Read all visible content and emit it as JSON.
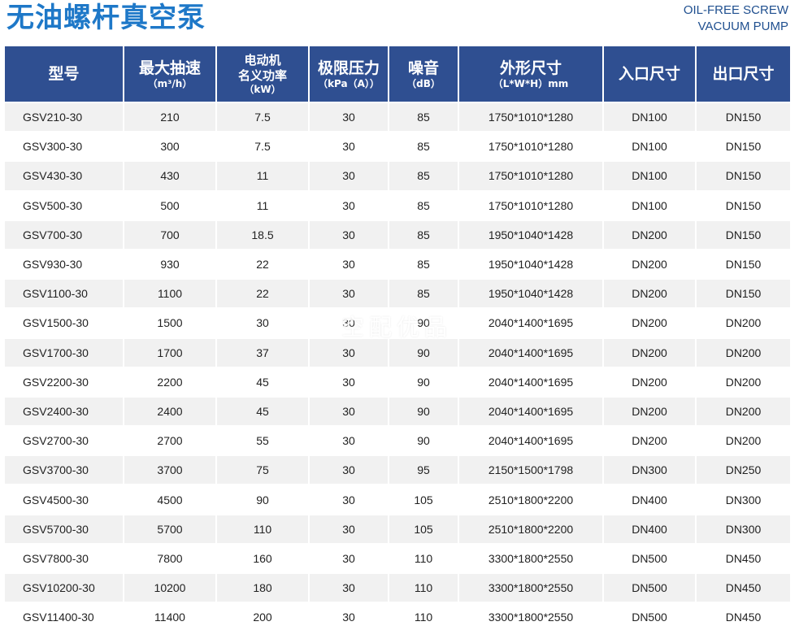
{
  "header": {
    "title": "无油螺杆真空泵",
    "subtitle_line1": "OIL-FREE SCREW",
    "subtitle_line2": "VACUUM PUMP"
  },
  "columns": [
    {
      "line1": "型号"
    },
    {
      "line1": "最大抽速",
      "unit": "（m³/h）"
    },
    {
      "line1": "电动机",
      "line2": "名义功率",
      "unit": "（kW）"
    },
    {
      "line1": "极限压力",
      "unit": "（kPa（A））"
    },
    {
      "line1": "噪音",
      "unit": "（dB）"
    },
    {
      "line1": "外形尺寸",
      "unit": "（L*W*H）mm"
    },
    {
      "line1": "入口尺寸"
    },
    {
      "line1": "出口尺寸"
    }
  ],
  "rows": [
    [
      "GSV210-30",
      "210",
      "7.5",
      "30",
      "85",
      "1750*1010*1280",
      "DN100",
      "DN150"
    ],
    [
      "GSV300-30",
      "300",
      "7.5",
      "30",
      "85",
      "1750*1010*1280",
      "DN100",
      "DN150"
    ],
    [
      "GSV430-30",
      "430",
      "11",
      "30",
      "85",
      "1750*1010*1280",
      "DN100",
      "DN150"
    ],
    [
      "GSV500-30",
      "500",
      "11",
      "30",
      "85",
      "1750*1010*1280",
      "DN100",
      "DN150"
    ],
    [
      "GSV700-30",
      "700",
      "18.5",
      "30",
      "85",
      "1950*1040*1428",
      "DN200",
      "DN150"
    ],
    [
      "GSV930-30",
      "930",
      "22",
      "30",
      "85",
      "1950*1040*1428",
      "DN200",
      "DN150"
    ],
    [
      "GSV1100-30",
      "1100",
      "22",
      "30",
      "85",
      "1950*1040*1428",
      "DN200",
      "DN150"
    ],
    [
      "GSV1500-30",
      "1500",
      "30",
      "30",
      "90",
      "2040*1400*1695",
      "DN200",
      "DN200"
    ],
    [
      "GSV1700-30",
      "1700",
      "37",
      "30",
      "90",
      "2040*1400*1695",
      "DN200",
      "DN200"
    ],
    [
      "GSV2200-30",
      "2200",
      "45",
      "30",
      "90",
      "2040*1400*1695",
      "DN200",
      "DN200"
    ],
    [
      "GSV2400-30",
      "2400",
      "45",
      "30",
      "90",
      "2040*1400*1695",
      "DN200",
      "DN200"
    ],
    [
      "GSV2700-30",
      "2700",
      "55",
      "30",
      "90",
      "2040*1400*1695",
      "DN200",
      "DN200"
    ],
    [
      "GSV3700-30",
      "3700",
      "75",
      "30",
      "95",
      "2150*1500*1798",
      "DN300",
      "DN250"
    ],
    [
      "GSV4500-30",
      "4500",
      "90",
      "30",
      "105",
      "2510*1800*2200",
      "DN400",
      "DN300"
    ],
    [
      "GSV5700-30",
      "5700",
      "110",
      "30",
      "105",
      "2510*1800*2200",
      "DN400",
      "DN300"
    ],
    [
      "GSV7800-30",
      "7800",
      "160",
      "30",
      "110",
      "3300*1800*2550",
      "DN500",
      "DN450"
    ],
    [
      "GSV10200-30",
      "10200",
      "180",
      "30",
      "110",
      "3300*1800*2550",
      "DN500",
      "DN450"
    ],
    [
      "GSV11400-30",
      "11400",
      "200",
      "30",
      "110",
      "3300*1800*2550",
      "DN500",
      "DN450"
    ]
  ],
  "watermark": "空配优品"
}
